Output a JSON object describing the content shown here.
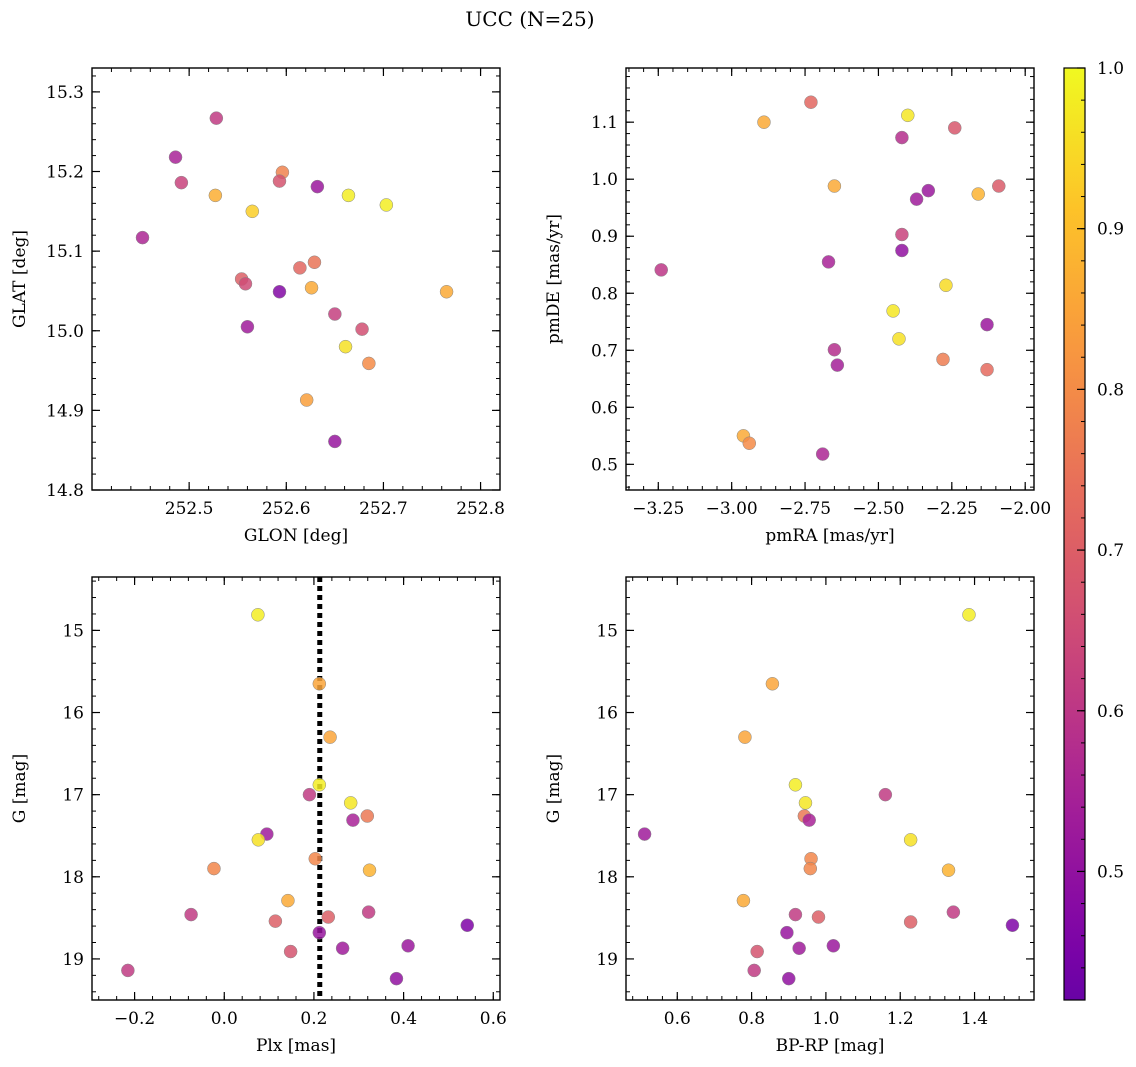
{
  "figure": {
    "title": "UCC (N=25)"
  },
  "colorbar": {
    "colormap": "plasma",
    "range": [
      0.42,
      1.0
    ],
    "ticks": [
      0.5,
      0.6,
      0.7,
      0.8,
      0.9,
      1.0
    ],
    "tick_labels": [
      "0.5",
      "0.6",
      "0.7",
      "0.8",
      "0.9",
      "1.0"
    ]
  },
  "chart_data": [
    {
      "type": "scatter",
      "xlabel": "GLON [deg]",
      "ylabel": "GLAT [deg]",
      "xlim": [
        252.4,
        252.82
      ],
      "ylim": [
        14.8,
        15.33
      ],
      "xticks": [
        252.5,
        252.6,
        252.7,
        252.8
      ],
      "xtick_labels": [
        "252.5",
        "252.6",
        "252.7",
        "252.8"
      ],
      "yticks": [
        14.8,
        14.9,
        15.0,
        15.1,
        15.2,
        15.3
      ],
      "ytick_labels": [
        "14.8",
        "14.9",
        "15.0",
        "15.1",
        "15.2",
        "15.3"
      ],
      "x": [
        252.528,
        252.486,
        252.492,
        252.452,
        252.527,
        252.596,
        252.593,
        252.565,
        252.632,
        252.664,
        252.703,
        252.554,
        252.558,
        252.614,
        252.629,
        252.593,
        252.626,
        252.56,
        252.65,
        252.678,
        252.661,
        252.685,
        252.621,
        252.65,
        252.765
      ],
      "y": [
        15.267,
        15.218,
        15.186,
        15.117,
        15.17,
        15.199,
        15.188,
        15.15,
        15.181,
        15.17,
        15.158,
        15.065,
        15.059,
        15.079,
        15.086,
        15.049,
        15.054,
        15.005,
        15.021,
        15.002,
        14.98,
        14.959,
        14.913,
        14.861,
        15.049
      ],
      "color": [
        0.61,
        0.55,
        0.63,
        0.56,
        0.87,
        0.78,
        0.67,
        0.93,
        0.52,
        0.98,
        0.98,
        0.7,
        0.65,
        0.72,
        0.75,
        0.47,
        0.86,
        0.53,
        0.62,
        0.66,
        0.96,
        0.8,
        0.84,
        0.51,
        0.86
      ]
    },
    {
      "type": "scatter",
      "xlabel": "pmRA [mas/yr]",
      "ylabel": "pmDE [mas/yr]",
      "xlim": [
        -3.36,
        -1.97
      ],
      "ylim": [
        0.455,
        1.195
      ],
      "xticks": [
        -3.25,
        -3.0,
        -2.75,
        -2.5,
        -2.25,
        -2.0
      ],
      "xtick_labels": [
        "−3.25",
        "−3.00",
        "−2.75",
        "−2.50",
        "−2.25",
        "−2.00"
      ],
      "yticks": [
        0.5,
        0.6,
        0.7,
        0.8,
        0.9,
        1.0,
        1.1
      ],
      "ytick_labels": [
        "0.5",
        "0.6",
        "0.7",
        "0.8",
        "0.9",
        "1.0",
        "1.1"
      ],
      "x": [
        -2.73,
        -2.4,
        -2.89,
        -2.42,
        -2.24,
        -2.65,
        -2.16,
        -2.09,
        -2.33,
        -2.37,
        -2.42,
        -2.42,
        -3.24,
        -2.67,
        -2.27,
        -2.45,
        -2.43,
        -2.13,
        -2.65,
        -2.64,
        -2.28,
        -2.13,
        -2.96,
        -2.94,
        -2.69
      ],
      "y": [
        1.135,
        1.112,
        1.1,
        1.073,
        1.09,
        0.988,
        0.974,
        0.988,
        0.98,
        0.965,
        0.903,
        0.875,
        0.841,
        0.855,
        0.814,
        0.769,
        0.72,
        0.745,
        0.701,
        0.674,
        0.684,
        0.666,
        0.55,
        0.537,
        0.518
      ],
      "color": [
        0.72,
        0.97,
        0.86,
        0.58,
        0.68,
        0.86,
        0.88,
        0.69,
        0.52,
        0.53,
        0.63,
        0.5,
        0.6,
        0.55,
        0.95,
        0.97,
        0.96,
        0.52,
        0.58,
        0.54,
        0.77,
        0.73,
        0.86,
        0.8,
        0.56
      ]
    },
    {
      "type": "scatter",
      "xlabel": "Plx [mas]",
      "ylabel": "G [mag]",
      "y_inverted": true,
      "vertical_line": {
        "x": 0.213,
        "style": "dotted"
      },
      "xlim": [
        -0.295,
        0.615
      ],
      "ylim": [
        19.5,
        14.35
      ],
      "xticks": [
        -0.2,
        0.0,
        0.2,
        0.4,
        0.6
      ],
      "xtick_labels": [
        "−0.2",
        "0.0",
        "0.2",
        "0.4",
        "0.6"
      ],
      "yticks": [
        15,
        16,
        17,
        18,
        19
      ],
      "ytick_labels": [
        "15",
        "16",
        "17",
        "18",
        "19"
      ],
      "x": [
        0.075,
        0.212,
        0.236,
        0.212,
        0.282,
        0.19,
        0.319,
        0.287,
        0.095,
        0.076,
        0.203,
        -0.023,
        0.324,
        0.142,
        -0.074,
        0.114,
        0.232,
        0.322,
        0.542,
        0.212,
        0.148,
        0.264,
        0.41,
        0.384,
        -0.215
      ],
      "y": [
        14.81,
        15.65,
        16.3,
        16.88,
        17.1,
        17.0,
        17.26,
        17.31,
        17.48,
        17.55,
        17.78,
        17.9,
        17.92,
        18.29,
        18.46,
        18.54,
        18.49,
        18.43,
        18.59,
        18.68,
        18.91,
        18.87,
        18.84,
        19.24,
        19.14
      ],
      "color": [
        0.98,
        0.85,
        0.85,
        0.98,
        0.97,
        0.61,
        0.76,
        0.55,
        0.53,
        0.96,
        0.79,
        0.79,
        0.88,
        0.86,
        0.61,
        0.7,
        0.7,
        0.61,
        0.46,
        0.51,
        0.67,
        0.53,
        0.52,
        0.5,
        0.61
      ]
    },
    {
      "type": "scatter",
      "xlabel": "BP-RP [mag]",
      "ylabel": "G [mag]",
      "y_inverted": true,
      "xlim": [
        0.462,
        1.56
      ],
      "ylim": [
        19.5,
        14.35
      ],
      "xticks": [
        0.6,
        0.8,
        1.0,
        1.2,
        1.4
      ],
      "xtick_labels": [
        "0.6",
        "0.8",
        "1.0",
        "1.2",
        "1.4"
      ],
      "yticks": [
        15,
        16,
        17,
        18,
        19
      ],
      "ytick_labels": [
        "15",
        "16",
        "17",
        "18",
        "19"
      ],
      "x": [
        1.385,
        0.856,
        0.782,
        0.918,
        0.945,
        1.16,
        0.942,
        0.955,
        0.512,
        1.228,
        0.96,
        0.958,
        1.33,
        0.778,
        0.918,
        0.98,
        1.228,
        1.343,
        1.502,
        0.895,
        0.815,
        0.928,
        1.02,
        0.9,
        0.807
      ],
      "y": [
        14.81,
        15.65,
        16.3,
        16.88,
        17.1,
        17.0,
        17.26,
        17.31,
        17.48,
        17.55,
        17.78,
        17.9,
        17.92,
        18.29,
        18.46,
        18.49,
        18.55,
        18.43,
        18.59,
        18.68,
        18.91,
        18.87,
        18.84,
        19.24,
        19.14
      ],
      "color": [
        0.98,
        0.85,
        0.85,
        0.98,
        0.97,
        0.61,
        0.76,
        0.55,
        0.53,
        0.96,
        0.79,
        0.79,
        0.88,
        0.86,
        0.61,
        0.7,
        0.7,
        0.61,
        0.46,
        0.51,
        0.67,
        0.53,
        0.52,
        0.5,
        0.61
      ]
    }
  ]
}
